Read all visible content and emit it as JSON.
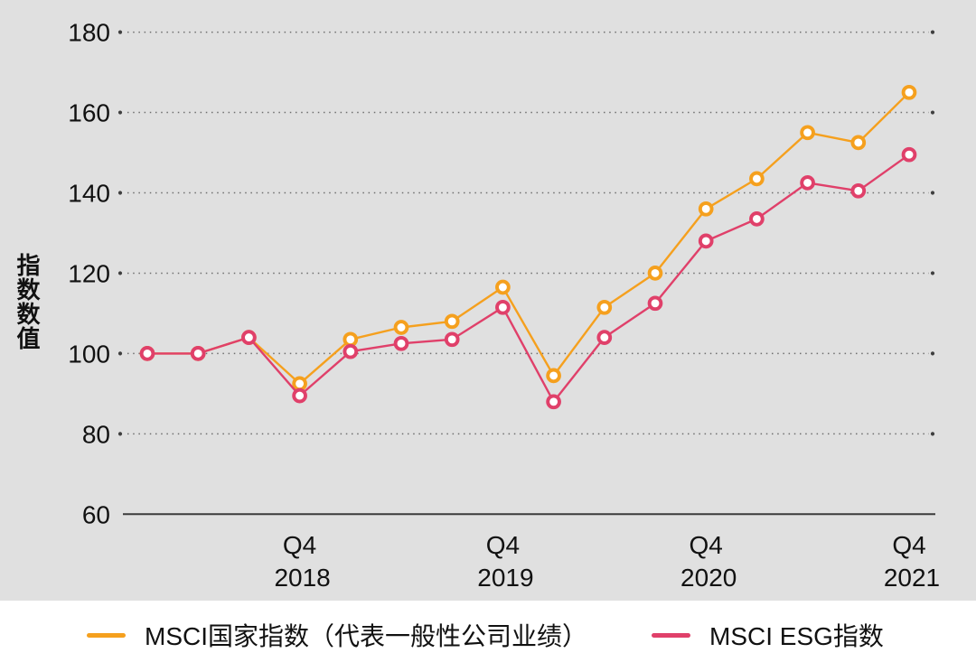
{
  "chart_data": {
    "type": "line",
    "title": "",
    "ylabel": "指数数值",
    "ylim": [
      60,
      180
    ],
    "yticks": [
      180,
      160,
      140,
      120,
      100,
      80,
      60
    ],
    "x_point_count": 16,
    "x_ticks": [
      {
        "index": 3,
        "quarter": "Q4",
        "year": "2018"
      },
      {
        "index": 7,
        "quarter": "Q4",
        "year": "2019"
      },
      {
        "index": 11,
        "quarter": "Q4",
        "year": "2020"
      },
      {
        "index": 15,
        "quarter": "Q4",
        "year": "2021"
      }
    ],
    "grid": "dotted-horizontal",
    "legend_position": "bottom",
    "series": [
      {
        "name": "MSCI国家指数（代表一般性公司业绩）",
        "color": "#F5A01E",
        "values": [
          100,
          100,
          104,
          92.5,
          103.5,
          106.5,
          108,
          116.5,
          94.5,
          111.5,
          120,
          136,
          143.5,
          155,
          152.5,
          165
        ]
      },
      {
        "name": "MSCI ESG指数",
        "color": "#E0406A",
        "values": [
          100,
          100,
          104,
          89.5,
          100.5,
          102.5,
          103.5,
          111.5,
          88,
          104,
          112.5,
          128,
          133.5,
          142.5,
          140.5,
          149.5
        ]
      }
    ]
  }
}
